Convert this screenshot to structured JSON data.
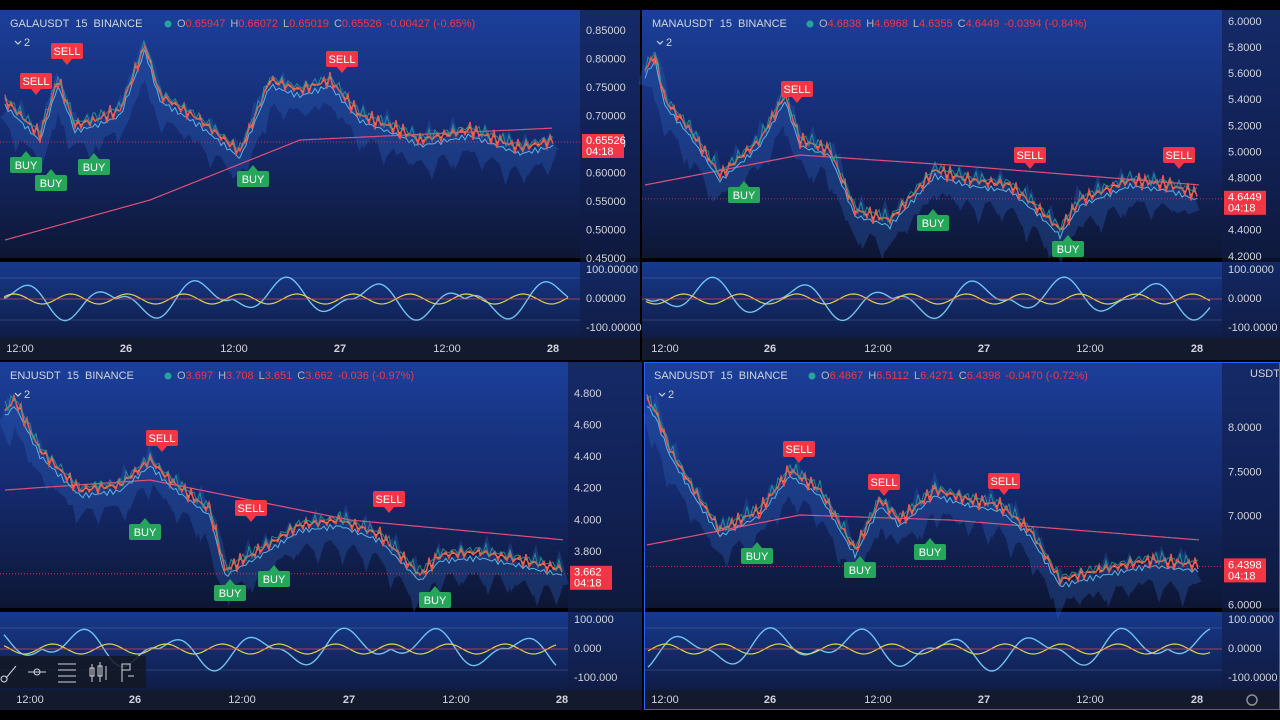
{
  "panels": [
    {
      "symbol": "GALAUSDT",
      "interval": "15",
      "exchange": "BINANCE",
      "ohlc": [
        [
          "O",
          "0.65947"
        ],
        [
          "H",
          "0.66072"
        ],
        [
          "L",
          "0.65019"
        ],
        [
          "C",
          "0.65526"
        ]
      ],
      "change": "-0.00427 (-0.65%)",
      "indicators": "2",
      "price_ticks": [
        "0.85000",
        "0.80000",
        "0.75000",
        "0.70000",
        "0.65000",
        "0.60000",
        "0.55000",
        "0.50000",
        "0.45000"
      ],
      "price_tag": "0.65526",
      "countdown": "04:18",
      "osc_ticks": [
        "100.00000",
        "0.00000",
        "-100.00000"
      ],
      "time_labels": [
        "12:00",
        "26",
        "12:00",
        "27",
        "12:00",
        "28"
      ],
      "signals": [
        "SELL",
        "SELL",
        "SELL",
        "BUY",
        "BUY",
        "BUY",
        "BUY"
      ]
    },
    {
      "symbol": "MANAUSDT",
      "interval": "15",
      "exchange": "BINANCE",
      "ohlc": [
        [
          "O",
          "4.6838"
        ],
        [
          "H",
          "4.6968"
        ],
        [
          "L",
          "4.6355"
        ],
        [
          "C",
          "4.6449"
        ]
      ],
      "change": "-0.0394 (-0.84%)",
      "indicators": "2",
      "price_ticks": [
        "6.0000",
        "5.8000",
        "5.6000",
        "5.4000",
        "5.2000",
        "5.0000",
        "4.8000",
        "4.4000",
        "4.2000"
      ],
      "price_tag": "4.6449",
      "countdown": "04:18",
      "osc_ticks": [
        "100.0000",
        "0.0000",
        "-100.0000"
      ],
      "time_labels": [
        "12:00",
        "26",
        "12:00",
        "27",
        "12:00",
        "28"
      ],
      "signals": [
        "SELL",
        "SELL",
        "SELL",
        "BUY",
        "BUY",
        "BUY"
      ]
    },
    {
      "symbol": "ENJUSDT",
      "interval": "15",
      "exchange": "BINANCE",
      "ohlc": [
        [
          "O",
          "3.697"
        ],
        [
          "H",
          "3.708"
        ],
        [
          "L",
          "3.651"
        ],
        [
          "C",
          "3.662"
        ]
      ],
      "change": "-0.036 (-0.97%)",
      "indicators": "2",
      "price_ticks": [
        "4.800",
        "4.600",
        "4.400",
        "4.200",
        "4.000",
        "3.800"
      ],
      "price_tag": "3.662",
      "countdown": "04:18",
      "osc_ticks": [
        "100.000",
        "0.000",
        "-100.000"
      ],
      "time_labels": [
        "12:00",
        "26",
        "12:00",
        "27",
        "12:00",
        "28"
      ],
      "signals": [
        "SELL",
        "SELL",
        "SELL",
        "BUY",
        "BUY",
        "BUY",
        "BUY"
      ]
    },
    {
      "symbol": "SANDUSDT",
      "interval": "15",
      "exchange": "BINANCE",
      "ohlc": [
        [
          "O",
          "6.4867"
        ],
        [
          "H",
          "6.5112"
        ],
        [
          "L",
          "6.4271"
        ],
        [
          "C",
          "6.4398"
        ]
      ],
      "change": "-0.0470 (-0.72%)",
      "indicators": "2",
      "currency": "USDT",
      "price_ticks": [
        "8.0000",
        "7.5000",
        "7.0000",
        "6.0000"
      ],
      "price_tag": "6.4398",
      "countdown": "04:18",
      "osc_ticks": [
        "100.0000",
        "0.0000",
        "-100.0000"
      ],
      "time_labels": [
        "12:00",
        "26",
        "12:00",
        "27",
        "12:00",
        "28"
      ],
      "signals": [
        "SELL",
        "SELL",
        "SELL",
        "BUY",
        "BUY",
        "BUY"
      ]
    }
  ]
}
